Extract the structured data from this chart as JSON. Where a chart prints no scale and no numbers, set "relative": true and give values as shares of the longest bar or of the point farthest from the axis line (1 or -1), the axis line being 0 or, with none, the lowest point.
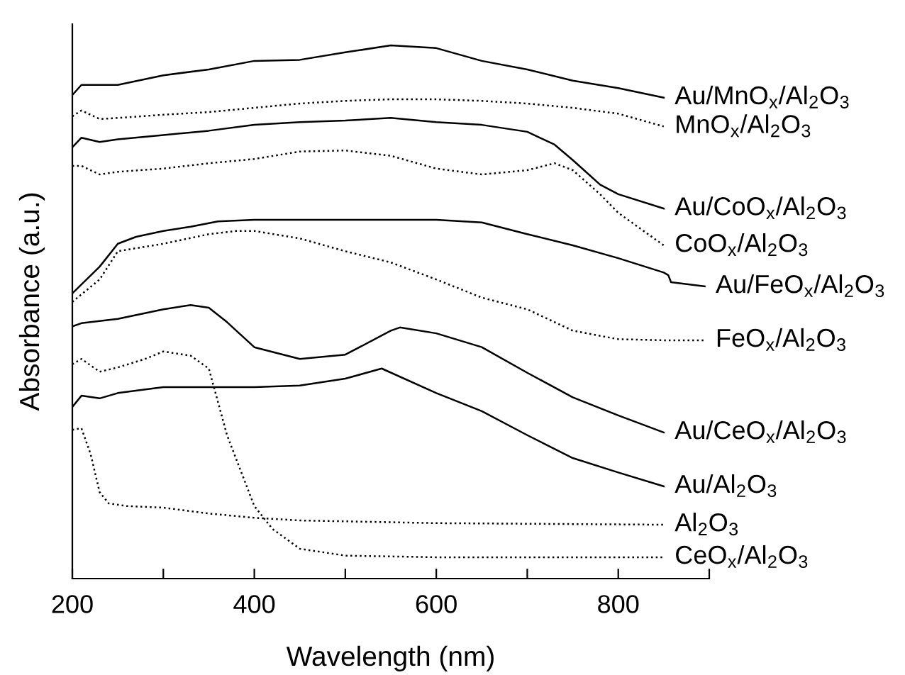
{
  "chart_data": {
    "type": "line",
    "relative": true,
    "xlabel": "Wavelength (nm)",
    "ylabel": "Absorbance (a.u.)",
    "xlim": [
      200,
      900
    ],
    "xticks": [
      200,
      {
        "value": 300,
        "label": null
      },
      400,
      {
        "value": 500,
        "label": null
      },
      600,
      {
        "value": 700,
        "label": null
      },
      800,
      {
        "value": 900,
        "label": null
      }
    ],
    "grid": false,
    "legend": false,
    "marker": "none",
    "series": [
      {
        "name": "Au/MnO$_{x}$/Al$_{2}$O$_{3}$",
        "color": "#000000",
        "line_style": "solid",
        "x": [
          200,
          210,
          250,
          300,
          350,
          400,
          450,
          500,
          550,
          600,
          650,
          700,
          750,
          800,
          850
        ],
        "values": [
          0.907,
          0.926,
          0.926,
          0.944,
          0.955,
          0.971,
          0.973,
          0.987,
          1.0,
          0.995,
          0.971,
          0.955,
          0.934,
          0.92,
          0.902
        ]
      },
      {
        "name": "MnO$_{x}$/Al$_{2}$O$_{3}$",
        "color": "#000000",
        "line_style": "dotted",
        "x": [
          200,
          210,
          230,
          250,
          300,
          350,
          400,
          450,
          500,
          550,
          600,
          650,
          700,
          750,
          800,
          850
        ],
        "values": [
          0.867,
          0.878,
          0.862,
          0.864,
          0.87,
          0.875,
          0.883,
          0.891,
          0.896,
          0.899,
          0.899,
          0.896,
          0.891,
          0.883,
          0.872,
          0.848
        ]
      },
      {
        "name": "Au/CoO$_{x}$/Al$_{2}$O$_{3}$",
        "color": "#000000",
        "line_style": "solid",
        "x": [
          200,
          210,
          230,
          250,
          300,
          350,
          400,
          450,
          500,
          550,
          600,
          650,
          700,
          730,
          750,
          780,
          800,
          850
        ],
        "values": [
          0.809,
          0.827,
          0.819,
          0.824,
          0.832,
          0.84,
          0.851,
          0.856,
          0.859,
          0.864,
          0.856,
          0.851,
          0.838,
          0.814,
          0.785,
          0.739,
          0.721,
          0.694
        ]
      },
      {
        "name": "CoO$_{x}$/Al$_{2}$O$_{3}$",
        "color": "#000000",
        "line_style": "dotted",
        "x": [
          200,
          210,
          230,
          250,
          300,
          350,
          400,
          450,
          500,
          550,
          600,
          650,
          700,
          730,
          750,
          780,
          800,
          850
        ],
        "values": [
          0.774,
          0.774,
          0.758,
          0.763,
          0.769,
          0.779,
          0.787,
          0.801,
          0.803,
          0.793,
          0.769,
          0.758,
          0.766,
          0.779,
          0.766,
          0.721,
          0.686,
          0.625
        ]
      },
      {
        "name": "Au/FeO$_{x}$/Al$_{2}$O$_{3}$",
        "color": "#000000",
        "line_style": "solid",
        "x": [
          200,
          230,
          250,
          270,
          300,
          330,
          360,
          400,
          500,
          600,
          650,
          700,
          750,
          800,
          850,
          855,
          858,
          895
        ],
        "values": [
          0.535,
          0.585,
          0.628,
          0.641,
          0.652,
          0.66,
          0.67,
          0.673,
          0.673,
          0.673,
          0.668,
          0.646,
          0.625,
          0.601,
          0.574,
          0.569,
          0.556,
          0.548
        ]
      },
      {
        "name": "FeO$_{x}$/Al$_{2}$O$_{3}$",
        "color": "#000000",
        "line_style": "dotted",
        "x": [
          200,
          230,
          250,
          300,
          350,
          380,
          400,
          450,
          500,
          550,
          600,
          650,
          700,
          750,
          800,
          850,
          895
        ],
        "values": [
          0.519,
          0.561,
          0.614,
          0.628,
          0.646,
          0.652,
          0.652,
          0.638,
          0.614,
          0.593,
          0.561,
          0.527,
          0.505,
          0.465,
          0.449,
          0.447,
          0.447
        ]
      },
      {
        "name": "Au/CeO$_{x}$/Al$_{2}$O$_{3}$",
        "color": "#000000",
        "line_style": "solid",
        "x": [
          200,
          210,
          250,
          300,
          330,
          350,
          370,
          400,
          450,
          500,
          550,
          560,
          600,
          650,
          700,
          750,
          800,
          850
        ],
        "values": [
          0.473,
          0.479,
          0.487,
          0.505,
          0.513,
          0.508,
          0.481,
          0.434,
          0.412,
          0.42,
          0.465,
          0.471,
          0.46,
          0.434,
          0.386,
          0.34,
          0.306,
          0.274
        ]
      },
      {
        "name": "Au/Al$_{2}$O$_{3}$",
        "color": "#000000",
        "line_style": "solid",
        "x": [
          200,
          210,
          230,
          250,
          300,
          350,
          400,
          450,
          500,
          540,
          600,
          650,
          700,
          750,
          800,
          850
        ],
        "values": [
          0.322,
          0.343,
          0.338,
          0.348,
          0.359,
          0.359,
          0.359,
          0.362,
          0.375,
          0.394,
          0.348,
          0.314,
          0.269,
          0.226,
          0.199,
          0.173
        ]
      },
      {
        "name": "Al$_{2}$O$_{3}$",
        "color": "#000000",
        "line_style": "dotted",
        "x": [
          200,
          210,
          220,
          230,
          240,
          260,
          300,
          350,
          400,
          450,
          600,
          850
        ],
        "values": [
          0.279,
          0.282,
          0.234,
          0.162,
          0.141,
          0.136,
          0.133,
          0.122,
          0.114,
          0.109,
          0.104,
          0.101
        ]
      },
      {
        "name": "CeO$_{x}$/Al$_{2}$O$_{3}$",
        "color": "#000000",
        "line_style": "dotted",
        "x": [
          200,
          210,
          230,
          250,
          280,
          300,
          330,
          350,
          370,
          400,
          420,
          450,
          500,
          600,
          850
        ],
        "values": [
          0.402,
          0.412,
          0.388,
          0.396,
          0.412,
          0.426,
          0.418,
          0.394,
          0.269,
          0.136,
          0.093,
          0.056,
          0.043,
          0.04,
          0.04
        ]
      }
    ]
  }
}
